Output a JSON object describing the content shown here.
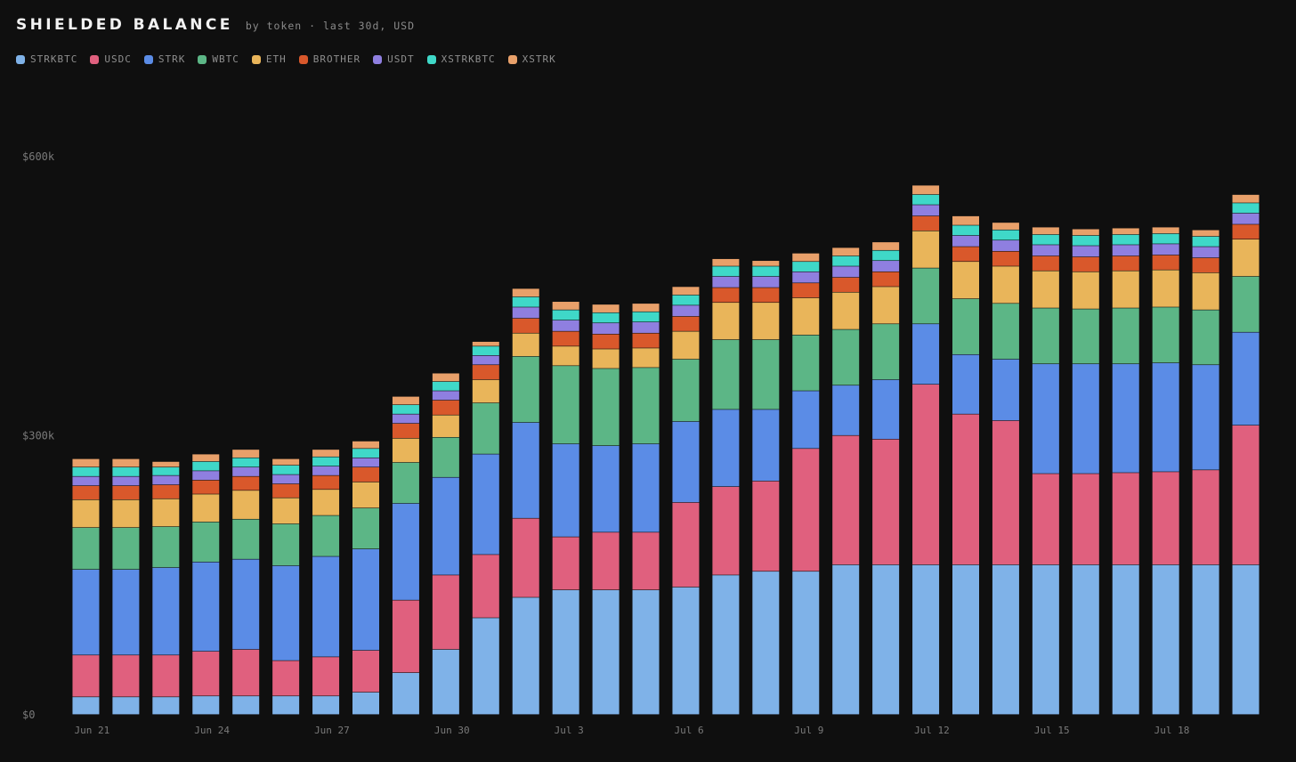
{
  "header": {
    "title": "SHIELDED BALANCE",
    "subtitle": "by token · last 30d, USD"
  },
  "chart_data": {
    "type": "bar",
    "stacked": true,
    "ylim": [
      0,
      600000
    ],
    "y_ticks": [
      {
        "value": 0,
        "label": "$0"
      },
      {
        "value": 300000,
        "label": "$300k"
      },
      {
        "value": 600000,
        "label": "$600k"
      }
    ],
    "categories": [
      "Jun 21",
      "Jun 22",
      "Jun 23",
      "Jun 24",
      "Jun 25",
      "Jun 26",
      "Jun 27",
      "Jun 28",
      "Jun 29",
      "Jun 30",
      "Jul 1",
      "Jul 2",
      "Jul 3",
      "Jul 4",
      "Jul 5",
      "Jul 6",
      "Jul 7",
      "Jul 8",
      "Jul 9",
      "Jul 10",
      "Jul 11",
      "Jul 12",
      "Jul 13",
      "Jul 14",
      "Jul 15",
      "Jul 16",
      "Jul 17",
      "Jul 18",
      "Jul 19",
      "Jul 20"
    ],
    "x_tick_labels": [
      {
        "index": 0,
        "label": "Jun 21"
      },
      {
        "index": 3,
        "label": "Jun 24"
      },
      {
        "index": 6,
        "label": "Jun 27"
      },
      {
        "index": 9,
        "label": "Jun 30"
      },
      {
        "index": 12,
        "label": "Jul 3"
      },
      {
        "index": 15,
        "label": "Jul 6"
      },
      {
        "index": 18,
        "label": "Jul 9"
      },
      {
        "index": 21,
        "label": "Jul 12"
      },
      {
        "index": 24,
        "label": "Jul 15"
      },
      {
        "index": 27,
        "label": "Jul 18"
      }
    ],
    "legend_position": "top-left",
    "grid": false,
    "series": [
      {
        "name": "STRKBTC",
        "color": "#7fb2e8",
        "values": [
          19000,
          19000,
          19000,
          20000,
          20000,
          20000,
          20000,
          24000,
          45000,
          70000,
          104000,
          126000,
          134000,
          134000,
          134000,
          137000,
          150000,
          154000,
          154000,
          161000,
          161000,
          161000,
          161000,
          161000,
          161000,
          161000,
          161000,
          161000,
          161000,
          161000
        ]
      },
      {
        "name": "USDC",
        "color": "#e0607e",
        "values": [
          45000,
          45000,
          45000,
          48000,
          50000,
          38000,
          42000,
          45000,
          78000,
          80000,
          68000,
          85000,
          57000,
          62000,
          62000,
          91000,
          95000,
          97000,
          132000,
          139000,
          135000,
          194000,
          162000,
          155000,
          98000,
          98000,
          99000,
          100000,
          102000,
          150000
        ]
      },
      {
        "name": "STRK",
        "color": "#5b8ce6",
        "values": [
          92000,
          92000,
          94000,
          96000,
          97000,
          102000,
          108000,
          109000,
          104000,
          105000,
          108000,
          103000,
          100000,
          93000,
          95000,
          87000,
          83000,
          77000,
          62000,
          54000,
          64000,
          65000,
          64000,
          66000,
          118000,
          118000,
          117000,
          117000,
          113000,
          100000
        ]
      },
      {
        "name": "WBTC",
        "color": "#5cb686",
        "values": [
          45000,
          45000,
          44000,
          43000,
          43000,
          45000,
          44000,
          44000,
          44000,
          43000,
          55000,
          71000,
          84000,
          83000,
          82000,
          67000,
          75000,
          75000,
          60000,
          60000,
          60000,
          60000,
          60000,
          60000,
          60000,
          59000,
          60000,
          60000,
          59000,
          60000
        ]
      },
      {
        "name": "ETH",
        "color": "#e9b55a",
        "values": [
          30000,
          30000,
          30000,
          30000,
          31000,
          28000,
          28000,
          28000,
          26000,
          24000,
          25000,
          25000,
          21000,
          21000,
          21000,
          30000,
          40000,
          40000,
          40000,
          40000,
          40000,
          40000,
          40000,
          40000,
          40000,
          40000,
          40000,
          40000,
          40000,
          40000
        ]
      },
      {
        "name": "BROTHER",
        "color": "#d9582b",
        "values": [
          15000,
          15000,
          15000,
          15000,
          15000,
          15000,
          15000,
          16000,
          16000,
          16000,
          16000,
          16000,
          16000,
          16000,
          16000,
          16000,
          16000,
          16000,
          16000,
          16000,
          16000,
          16000,
          16000,
          16000,
          16000,
          16000,
          16000,
          16000,
          16000,
          16000
        ]
      },
      {
        "name": "USDT",
        "color": "#8f7fe0",
        "values": [
          10000,
          10000,
          10000,
          10000,
          10000,
          10000,
          10000,
          10000,
          10000,
          10000,
          10000,
          12000,
          12000,
          12000,
          12000,
          12000,
          12000,
          12000,
          12000,
          12000,
          12000,
          12000,
          12000,
          12000,
          12000,
          12000,
          12000,
          12000,
          12000,
          12000
        ]
      },
      {
        "name": "XSTRKBTC",
        "color": "#3fd8c8",
        "values": [
          10000,
          10000,
          9000,
          10000,
          10000,
          10000,
          10000,
          10000,
          10000,
          10000,
          10000,
          11000,
          11000,
          11000,
          11000,
          11000,
          11000,
          11000,
          11000,
          11000,
          11000,
          11000,
          11000,
          11000,
          11000,
          11000,
          11000,
          11000,
          11000,
          11000
        ]
      },
      {
        "name": "XSTRK",
        "color": "#e8a06a",
        "values": [
          9000,
          9000,
          6000,
          8000,
          9000,
          7000,
          8000,
          8000,
          9000,
          9000,
          5000,
          9000,
          9000,
          9000,
          9000,
          9000,
          8000,
          6000,
          9000,
          9000,
          9000,
          10000,
          10000,
          8000,
          8000,
          7000,
          7000,
          7000,
          7000,
          9000
        ]
      }
    ]
  }
}
